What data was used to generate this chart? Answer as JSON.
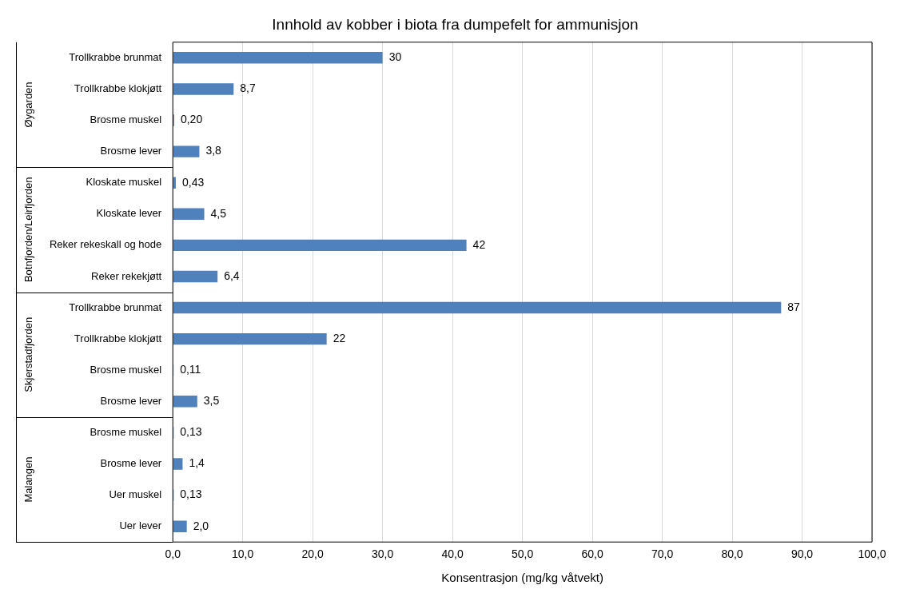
{
  "chart_data": {
    "type": "bar",
    "orientation": "horizontal",
    "title": "Innhold av kobber i biota fra dumpefelt for ammunisjon",
    "xlabel": "Konsentrasjon (mg/kg våtvekt)",
    "categories": [
      "Trollkrabbe brunmat",
      "Trollkrabbe klokjøtt",
      "Brosme muskel",
      "Brosme lever",
      "Kloskate muskel",
      "Kloskate lever",
      "Reker rekeskall og hode",
      "Reker rekekjøtt",
      "Trollkrabbe brunmat",
      "Trollkrabbe klokjøtt",
      "Brosme muskel",
      "Brosme lever",
      "Brosme muskel",
      "Brosme lever",
      "Uer muskel",
      "Uer lever"
    ],
    "values": [
      30,
      8.7,
      0.2,
      3.8,
      0.43,
      4.5,
      42,
      6.4,
      87,
      22,
      0.11,
      3.5,
      0.13,
      1.4,
      0.13,
      2.0
    ],
    "value_labels": [
      "30",
      "8,7",
      "0,20",
      "3,8",
      "0,43",
      "4,5",
      "42",
      "6,4",
      "87",
      "22",
      "0,11",
      "3,5",
      "0,13",
      "1,4",
      "0,13",
      "2,0"
    ],
    "color": "#4f81bd",
    "annotations": [
      "Øygarden",
      "Botnfjorden/Leirfjorden",
      "Skjerstadfjorden",
      "Malangen"
    ],
    "xlim": [
      0,
      100
    ],
    "xticks": [
      {
        "value": 0,
        "label": "0,0"
      },
      {
        "value": 10,
        "label": "10,0"
      },
      {
        "value": 20,
        "label": "20,0"
      },
      {
        "value": 30,
        "label": "30,0"
      },
      {
        "value": 40,
        "label": "40,0"
      },
      {
        "value": 50,
        "label": "50,0"
      },
      {
        "value": 60,
        "label": "60,0"
      },
      {
        "value": 70,
        "label": "70,0"
      },
      {
        "value": 80,
        "label": "80,0"
      },
      {
        "value": 90,
        "label": "90,0"
      },
      {
        "value": 100,
        "label": "100,0"
      }
    ],
    "grid": "x",
    "legend": false
  }
}
